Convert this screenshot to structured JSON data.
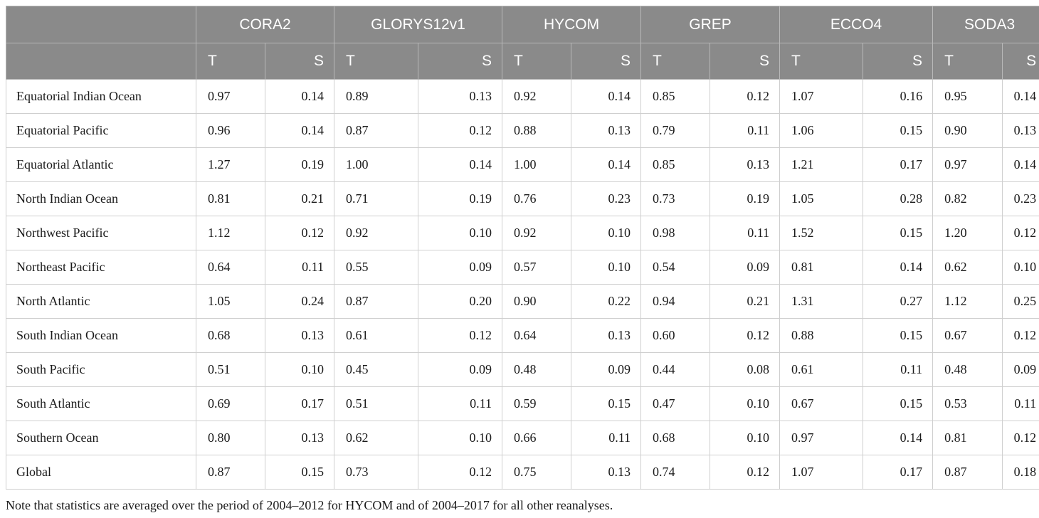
{
  "models": [
    "CORA2",
    "GLORYS12v1",
    "HYCOM",
    "GREP",
    "ECCO4",
    "SODA3"
  ],
  "sub_headers": {
    "t": "T",
    "s": "S"
  },
  "rows": [
    {
      "region": "Equatorial Indian Ocean",
      "values": [
        "0.97",
        "0.14",
        "0.89",
        "0.13",
        "0.92",
        "0.14",
        "0.85",
        "0.12",
        "1.07",
        "0.16",
        "0.95",
        "0.14"
      ]
    },
    {
      "region": "Equatorial Pacific",
      "values": [
        "0.96",
        "0.14",
        "0.87",
        "0.12",
        "0.88",
        "0.13",
        "0.79",
        "0.11",
        "1.06",
        "0.15",
        "0.90",
        "0.13"
      ]
    },
    {
      "region": "Equatorial Atlantic",
      "values": [
        "1.27",
        "0.19",
        "1.00",
        "0.14",
        "1.00",
        "0.14",
        "0.85",
        "0.13",
        "1.21",
        "0.17",
        "0.97",
        "0.14"
      ]
    },
    {
      "region": "North Indian Ocean",
      "values": [
        "0.81",
        "0.21",
        "0.71",
        "0.19",
        "0.76",
        "0.23",
        "0.73",
        "0.19",
        "1.05",
        "0.28",
        "0.82",
        "0.23"
      ]
    },
    {
      "region": "Northwest Pacific",
      "values": [
        "1.12",
        "0.12",
        "0.92",
        "0.10",
        "0.92",
        "0.10",
        "0.98",
        "0.11",
        "1.52",
        "0.15",
        "1.20",
        "0.12"
      ]
    },
    {
      "region": "Northeast Pacific",
      "values": [
        "0.64",
        "0.11",
        "0.55",
        "0.09",
        "0.57",
        "0.10",
        "0.54",
        "0.09",
        "0.81",
        "0.14",
        "0.62",
        "0.10"
      ]
    },
    {
      "region": "North Atlantic",
      "values": [
        "1.05",
        "0.24",
        "0.87",
        "0.20",
        "0.90",
        "0.22",
        "0.94",
        "0.21",
        "1.31",
        "0.27",
        "1.12",
        "0.25"
      ]
    },
    {
      "region": "South Indian Ocean",
      "values": [
        "0.68",
        "0.13",
        "0.61",
        "0.12",
        "0.64",
        "0.13",
        "0.60",
        "0.12",
        "0.88",
        "0.15",
        "0.67",
        "0.12"
      ]
    },
    {
      "region": "South Pacific",
      "values": [
        "0.51",
        "0.10",
        "0.45",
        "0.09",
        "0.48",
        "0.09",
        "0.44",
        "0.08",
        "0.61",
        "0.11",
        "0.48",
        "0.09"
      ]
    },
    {
      "region": "South Atlantic",
      "values": [
        "0.69",
        "0.17",
        "0.51",
        "0.11",
        "0.59",
        "0.15",
        "0.47",
        "0.10",
        "0.67",
        "0.15",
        "0.53",
        "0.11"
      ]
    },
    {
      "region": "Southern Ocean",
      "values": [
        "0.80",
        "0.13",
        "0.62",
        "0.10",
        "0.66",
        "0.11",
        "0.68",
        "0.10",
        "0.97",
        "0.14",
        "0.81",
        "0.12"
      ]
    },
    {
      "region": "Global",
      "values": [
        "0.87",
        "0.15",
        "0.73",
        "0.12",
        "0.75",
        "0.13",
        "0.74",
        "0.12",
        "1.07",
        "0.17",
        "0.87",
        "0.18"
      ]
    }
  ],
  "note": "Note that statistics are averaged over the period of 2004–2012 for HYCOM and of 2004–2017 for all other reanalyses.",
  "colors": {
    "header_bg": "#8a8a8a",
    "header_text": "#ffffff",
    "grid": "#cfcfcf"
  }
}
